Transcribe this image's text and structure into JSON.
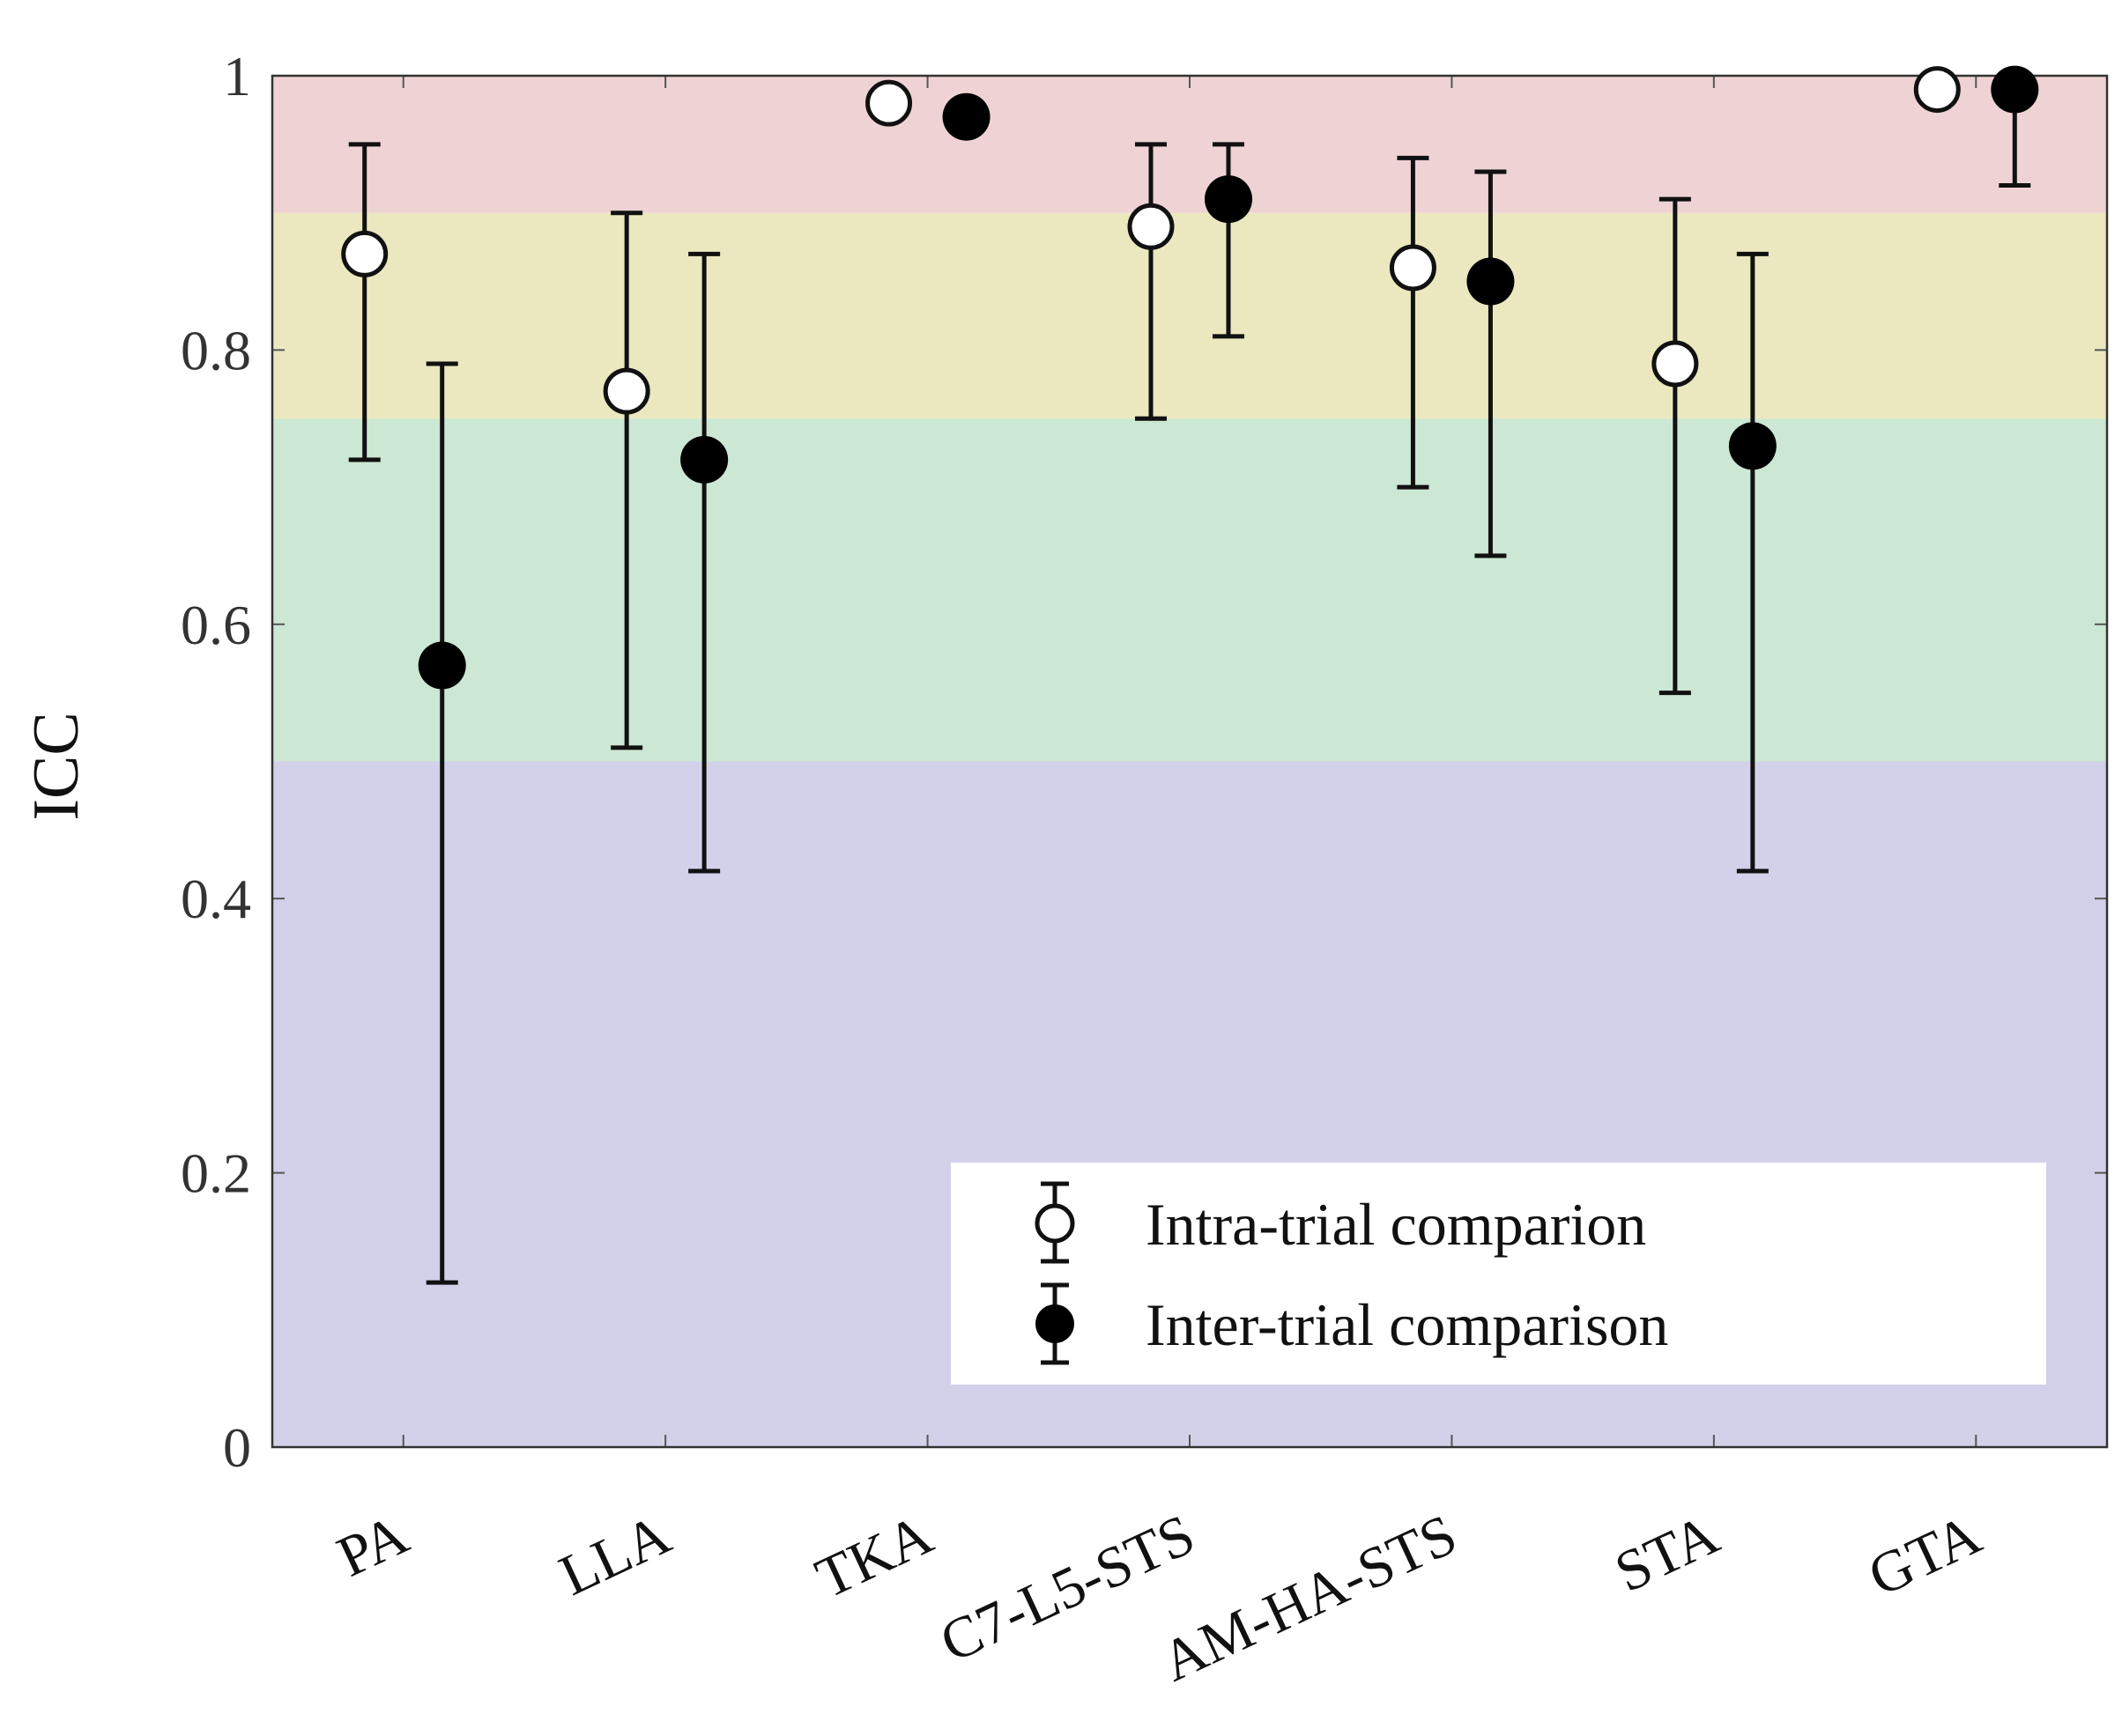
{
  "chart_data": {
    "type": "scatter",
    "title": "",
    "xlabel": "",
    "ylabel": "ICC",
    "ylim": [
      0,
      1
    ],
    "yticks": [
      "0",
      "0.2",
      "0.4",
      "0.6",
      "0.8",
      "1"
    ],
    "categories": [
      "PA",
      "LLA",
      "TKA",
      "C7-L5-STS",
      "AM-HA-STS",
      "STA",
      "GTA"
    ],
    "bands": [
      {
        "from": 0.0,
        "to": 0.5,
        "color": "#d3d1ea"
      },
      {
        "from": 0.5,
        "to": 0.75,
        "color": "#cce7d3"
      },
      {
        "from": 0.75,
        "to": 0.9,
        "color": "#ebe8c0"
      },
      {
        "from": 0.9,
        "to": 1.0,
        "color": "#efd3d4"
      }
    ],
    "series": [
      {
        "name": "Intra-trial comparion",
        "marker": "open",
        "values": [
          0.87,
          0.77,
          0.98,
          0.89,
          0.86,
          0.79,
          0.99
        ],
        "lower": [
          0.72,
          0.51,
          0.97,
          0.75,
          0.7,
          0.55,
          0.98
        ],
        "upper": [
          0.95,
          0.9,
          0.99,
          0.95,
          0.94,
          0.91,
          1.0
        ]
      },
      {
        "name": "Inter-trial comparison",
        "marker": "filled",
        "values": [
          0.57,
          0.72,
          0.97,
          0.91,
          0.85,
          0.73,
          0.99
        ],
        "lower": [
          0.12,
          0.42,
          0.97,
          0.81,
          0.65,
          0.42,
          0.92
        ],
        "upper": [
          0.79,
          0.87,
          0.97,
          0.95,
          0.93,
          0.87,
          0.99
        ]
      }
    ],
    "legend": {
      "position": "bottom-right",
      "entries": [
        "Intra-trial comparion",
        "Inter-trial comparison"
      ]
    }
  }
}
